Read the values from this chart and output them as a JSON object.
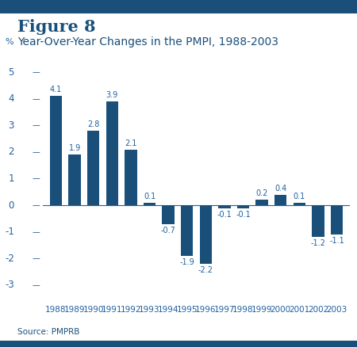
{
  "title_line1": "Figure 8",
  "title_line2": "Year-Over-Year Changes in the PMPI, 1988-2003",
  "source": "Source: PMPRB",
  "ylabel": "%",
  "years": [
    1988,
    1989,
    1990,
    1991,
    1992,
    1993,
    1994,
    1995,
    1996,
    1997,
    1998,
    1999,
    2000,
    2001,
    2002,
    2003
  ],
  "values": [
    4.1,
    1.9,
    2.8,
    3.9,
    2.1,
    0.1,
    -0.7,
    -1.9,
    -2.2,
    -0.1,
    -0.1,
    0.2,
    0.4,
    0.1,
    -1.2,
    -1.1
  ],
  "bar_color": "#1a4f7a",
  "border_color": "#1a4f7a",
  "ylim": [
    -3.5,
    5.5
  ],
  "yticks": [
    -3,
    -2,
    -1,
    0,
    1,
    2,
    3,
    4,
    5
  ],
  "title_color": "#1a4f7a",
  "label_color": "#2060a0",
  "tick_color": "#2060a0",
  "text_color": "#2060a0",
  "background_color": "#ffffff",
  "title1_fontsize": 15,
  "title2_fontsize": 10,
  "bar_label_fontsize": 7,
  "source_fontsize": 7.5,
  "ytick_fontsize": 8.5,
  "xtick_fontsize": 7.5
}
